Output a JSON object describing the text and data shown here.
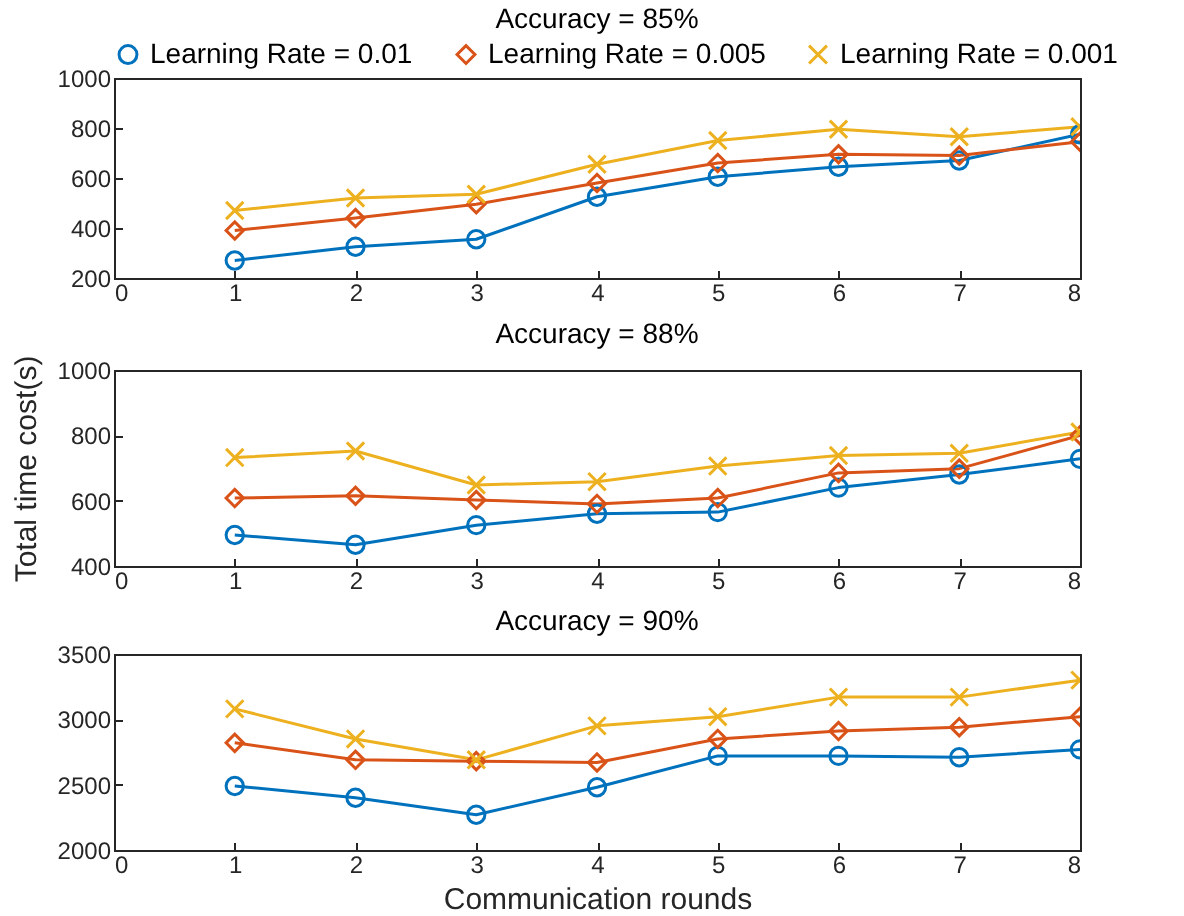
{
  "chart_data": [
    {
      "type": "line",
      "title": "Accuracy = 85%",
      "x": [
        1,
        2,
        3,
        4,
        5,
        6,
        7,
        8
      ],
      "xlim": [
        0,
        8
      ],
      "xticks": [
        0,
        1,
        2,
        3,
        4,
        5,
        6,
        7,
        8
      ],
      "ylim": [
        200,
        1000
      ],
      "yticks": [
        200,
        400,
        600,
        800,
        1000
      ],
      "legend": "top",
      "grid": false,
      "series": [
        {
          "name": "Learning Rate = 0.01",
          "color": "#0072bd",
          "marker": "circle",
          "values": [
            270,
            325,
            355,
            525,
            605,
            645,
            670,
            775
          ]
        },
        {
          "name": "Learning Rate = 0.005",
          "color": "#d95319",
          "marker": "diamond",
          "values": [
            390,
            440,
            495,
            580,
            660,
            695,
            690,
            745
          ]
        },
        {
          "name": "Learning Rate = 0.001",
          "color": "#edb120",
          "marker": "cross",
          "values": [
            470,
            520,
            535,
            655,
            750,
            795,
            765,
            805
          ]
        }
      ]
    },
    {
      "type": "line",
      "title": "Accuracy = 88%",
      "ylabel": "Total time cost(s)",
      "x": [
        1,
        2,
        3,
        4,
        5,
        6,
        7,
        8
      ],
      "xlim": [
        0,
        8
      ],
      "xticks": [
        0,
        1,
        2,
        3,
        4,
        5,
        6,
        7,
        8
      ],
      "ylim": [
        400,
        1000
      ],
      "yticks": [
        400,
        600,
        800,
        1000
      ],
      "grid": false,
      "series": [
        {
          "color": "#0072bd",
          "marker": "circle",
          "values": [
            495,
            465,
            525,
            560,
            565,
            640,
            680,
            728
          ]
        },
        {
          "color": "#d95319",
          "marker": "diamond",
          "values": [
            608,
            615,
            602,
            590,
            608,
            685,
            698,
            800
          ]
        },
        {
          "color": "#edb120",
          "marker": "cross",
          "values": [
            732,
            752,
            648,
            658,
            706,
            738,
            745,
            810
          ]
        }
      ]
    },
    {
      "type": "line",
      "title": "Accuracy = 90%",
      "xlabel": "Communication rounds",
      "x": [
        1,
        2,
        3,
        4,
        5,
        6,
        7,
        8
      ],
      "xlim": [
        0,
        8
      ],
      "xticks": [
        0,
        1,
        2,
        3,
        4,
        5,
        6,
        7,
        8
      ],
      "ylim": [
        2000,
        3500
      ],
      "yticks": [
        2000,
        2500,
        3000,
        3500
      ],
      "grid": false,
      "series": [
        {
          "color": "#0072bd",
          "marker": "circle",
          "values": [
            2490,
            2400,
            2270,
            2480,
            2720,
            2720,
            2710,
            2770
          ]
        },
        {
          "color": "#d95319",
          "marker": "diamond",
          "values": [
            2820,
            2690,
            2680,
            2670,
            2850,
            2910,
            2940,
            3020
          ]
        },
        {
          "color": "#edb120",
          "marker": "cross",
          "values": [
            3080,
            2850,
            2690,
            2950,
            3020,
            3170,
            3170,
            3300
          ]
        }
      ]
    }
  ]
}
